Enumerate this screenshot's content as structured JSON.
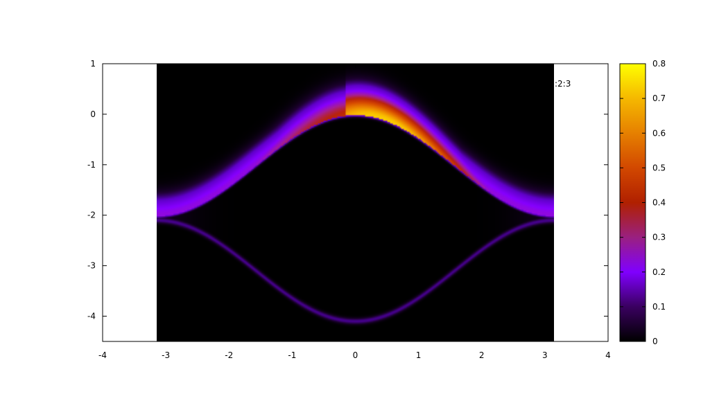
{
  "chart_data": {
    "type": "heatmap",
    "title": "",
    "xlabel": "",
    "ylabel": "",
    "xlim": [
      -4,
      4
    ],
    "ylim": [
      -4.5,
      1
    ],
    "data_xrange": [
      -3.1416,
      3.1416
    ],
    "x_ticks": [
      "-4",
      "-3",
      "-2",
      "-1",
      "0",
      "1",
      "2",
      "3",
      "4"
    ],
    "y_ticks": [
      "1",
      "0",
      "-1",
      "-2",
      "-3",
      "-4"
    ],
    "legend_text": ":2:3",
    "legend_position": "top-right",
    "colorbar": {
      "range": [
        0,
        0.8
      ],
      "ticks": [
        "0",
        "0.1",
        "0.2",
        "0.3",
        "0.4",
        "0.5",
        "0.6",
        "0.7",
        "0.8"
      ],
      "palette": "black-purple-red-orange-yellow"
    },
    "features": [
      {
        "name": "upper band",
        "shape": "a cos(x) - 1.2 offset",
        "peak_value": 0.7,
        "peak_x": 0.5,
        "peak_y": 0.0
      },
      {
        "name": "upper edge",
        "shape": "-1 + cos(x)"
      },
      {
        "name": "lower edge",
        "shape": "-3.1 - cos(x)",
        "value": 0.08
      }
    ],
    "grid": false
  }
}
